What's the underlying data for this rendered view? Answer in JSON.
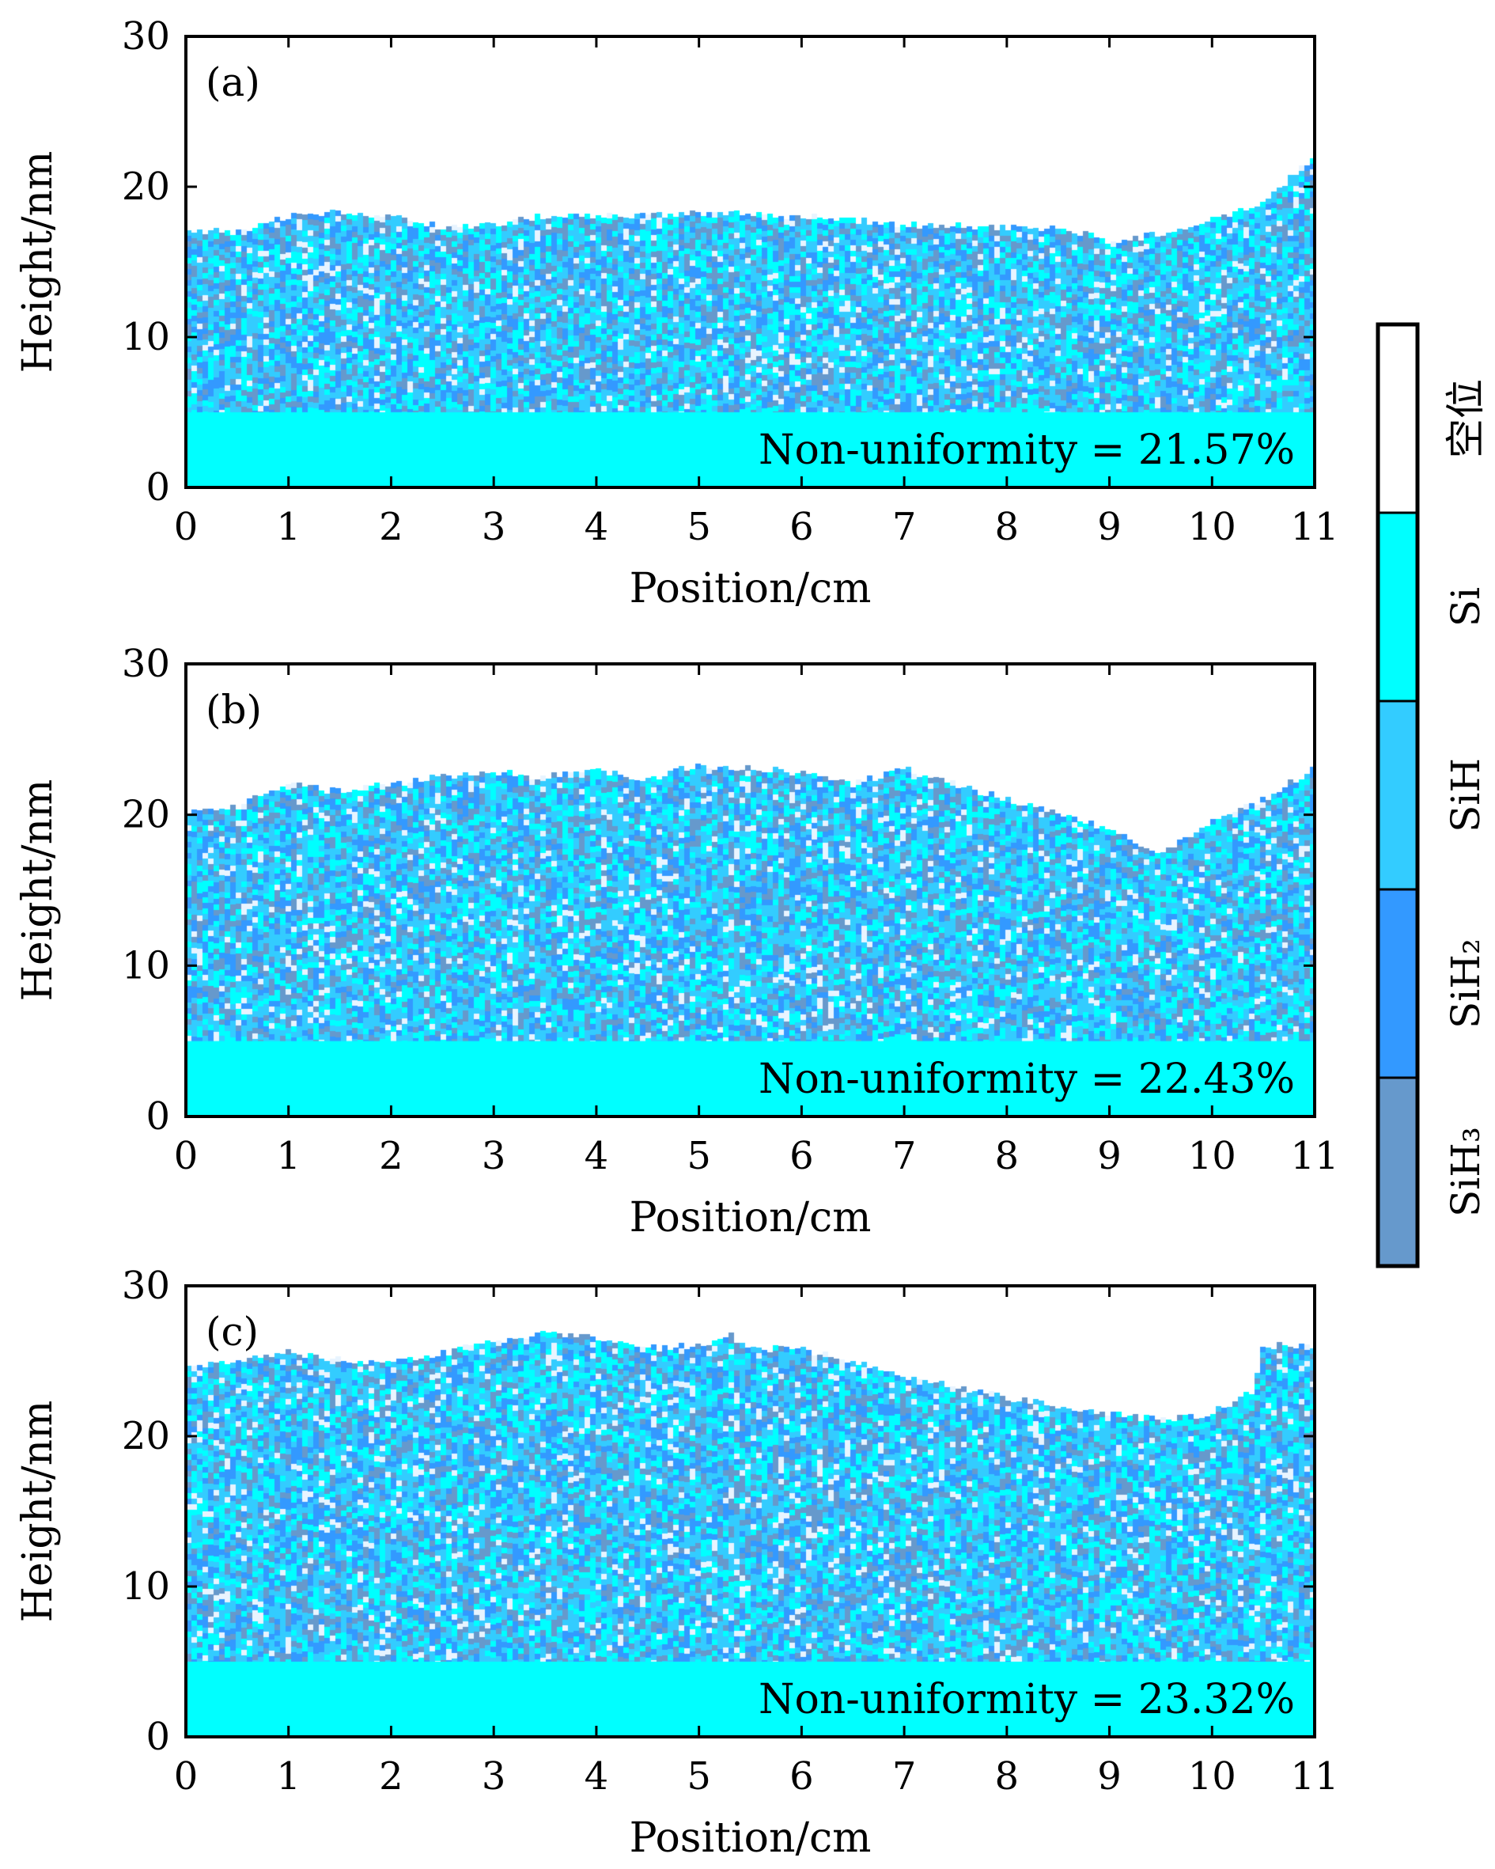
{
  "chart_data": [
    {
      "type": "heatmap",
      "panel_label": "(a)",
      "xlabel": "Position/cm",
      "ylabel": "Height/nm",
      "xlim": [
        0,
        11
      ],
      "ylim": [
        0,
        30
      ],
      "xticks": [
        "0",
        "1",
        "2",
        "3",
        "4",
        "5",
        "6",
        "7",
        "8",
        "9",
        "10",
        "11"
      ],
      "yticks": [
        "0",
        "10",
        "20",
        "30"
      ],
      "annotation": "Non-uniformity = 21.57%",
      "substrate_height": 5,
      "surface_profile": {
        "x": [
          0,
          0.5,
          1,
          1.5,
          2,
          2.5,
          3,
          3.5,
          4,
          5,
          6,
          7,
          8,
          8.5,
          9,
          9.5,
          10,
          10.5,
          11
        ],
        "y": [
          17,
          17,
          18,
          18.3,
          18,
          17.3,
          17.5,
          18,
          18,
          18.2,
          18,
          17.5,
          17.2,
          17.3,
          16.3,
          16.8,
          17.8,
          19,
          22
        ]
      }
    },
    {
      "type": "heatmap",
      "panel_label": "(b)",
      "xlabel": "Position/cm",
      "ylabel": "Height/nm",
      "xlim": [
        0,
        11
      ],
      "ylim": [
        0,
        30
      ],
      "xticks": [
        "0",
        "1",
        "2",
        "3",
        "4",
        "5",
        "6",
        "7",
        "8",
        "9",
        "10",
        "11"
      ],
      "yticks": [
        "0",
        "10",
        "20",
        "30"
      ],
      "annotation": "Non-uniformity = 22.43%",
      "substrate_height": 5,
      "surface_profile": {
        "x": [
          0,
          0.5,
          1,
          1.5,
          2,
          2.5,
          3,
          3.5,
          4,
          4.5,
          5,
          5.5,
          6,
          6.5,
          7,
          7.5,
          8,
          8.5,
          9,
          9.5,
          10,
          10.5,
          11
        ],
        "y": [
          20,
          20.5,
          22,
          21.5,
          22,
          22.5,
          22.8,
          22.5,
          23,
          22.3,
          23.3,
          23,
          22.8,
          22,
          23,
          22,
          21,
          20,
          19,
          17.5,
          19.5,
          21,
          23
        ]
      }
    },
    {
      "type": "heatmap",
      "panel_label": "(c)",
      "xlabel": "Position/cm",
      "ylabel": "Height/nm",
      "xlim": [
        0,
        11
      ],
      "ylim": [
        0,
        30
      ],
      "xticks": [
        "0",
        "1",
        "2",
        "3",
        "4",
        "5",
        "6",
        "7",
        "8",
        "9",
        "10",
        "11"
      ],
      "yticks": [
        "0",
        "10",
        "20",
        "30"
      ],
      "annotation": "Non-uniformity = 23.32%",
      "substrate_height": 5,
      "surface_profile": {
        "x": [
          0,
          0.5,
          1,
          1.5,
          2,
          2.5,
          3,
          3.5,
          4,
          4.5,
          5,
          5.3,
          5.5,
          6,
          6.5,
          7,
          7.5,
          8,
          8.5,
          9,
          9.5,
          10,
          10.4,
          10.5,
          11
        ],
        "y": [
          24.5,
          25,
          25.5,
          25,
          25,
          25.5,
          26.3,
          26.8,
          26.5,
          25.8,
          26,
          26.7,
          25.8,
          25.8,
          25,
          24,
          23.3,
          22.5,
          22,
          21.5,
          21,
          21.5,
          23,
          26,
          26
        ]
      }
    }
  ],
  "legend": {
    "type": "colorbar",
    "placement": "right",
    "items": [
      {
        "label": "空位",
        "color": "#FFFFFF"
      },
      {
        "label": "Si",
        "color": "#00FFFF"
      },
      {
        "label": "SiH",
        "color": "#33CCFF"
      },
      {
        "label": "SiH₂",
        "color": "#3399FF"
      },
      {
        "label": "SiH₃",
        "color": "#6699CC"
      }
    ]
  }
}
